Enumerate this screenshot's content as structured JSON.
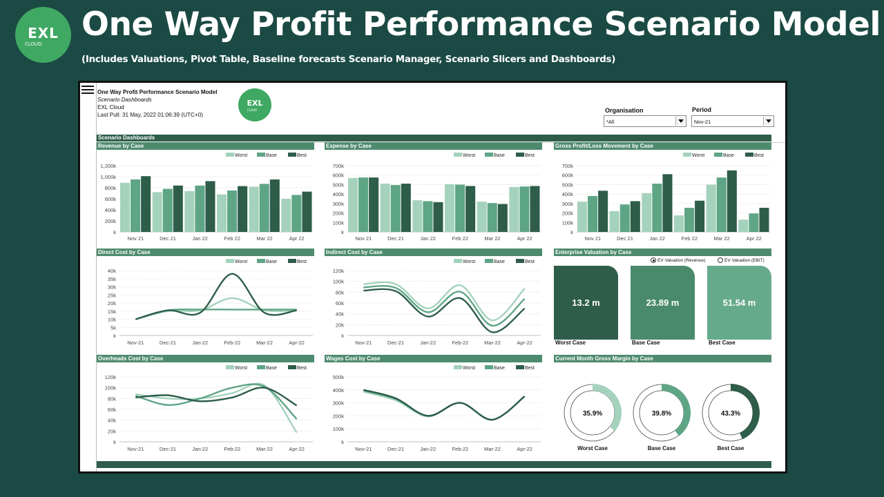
{
  "header": {
    "logo_text": "EXL",
    "logo_sub": "cloud",
    "title": "One Way Profit Performance Scenario Model",
    "subtitle": "(Includes Valuations, Pivot Table, Baseline forecasts Scenario Manager, Scenario Slicers and Dashboards)"
  },
  "dashboard": {
    "title": "One Way Profit Performance Scenario Model",
    "subtitle": "Scenario Dashboards",
    "company": "EXL Cloud",
    "last_pull": "Last Pull: 31 May, 2022 01:06:39 (UTC+0)",
    "logo_text": "EXL",
    "logo_sub": "cloud",
    "section_title": "Scenario Dashboards"
  },
  "filters": {
    "organisation_label": "Organisation",
    "organisation_value": "*All",
    "period_label": "Period",
    "period_value": "Nov-21"
  },
  "colors": {
    "worst": "#a5d2bd",
    "base": "#5ea586",
    "best": "#2e5d4a",
    "band": "#2e5d4a",
    "title_bar": "#4e8b6e"
  },
  "chart_data": [
    {
      "type": "bar",
      "title": "Revenue by Case",
      "categories": [
        "Nov 21",
        "Dec 21",
        "Jan 22",
        "Feb 22",
        "Mar 22",
        "Apr 22"
      ],
      "yticks": [
        "k",
        "200k",
        "400k",
        "600k",
        "800k",
        "1,000k",
        "1,200k"
      ],
      "ylim": [
        0,
        1200
      ],
      "grid": true,
      "legend": "top-right",
      "series": [
        {
          "name": "Worst",
          "values": [
            890,
            720,
            740,
            680,
            820,
            600
          ]
        },
        {
          "name": "Base",
          "values": [
            950,
            780,
            840,
            750,
            870,
            670
          ]
        },
        {
          "name": "Best",
          "values": [
            1010,
            840,
            920,
            830,
            950,
            730
          ]
        }
      ]
    },
    {
      "type": "bar",
      "title": "Expense by Case",
      "categories": [
        "Nov 21",
        "Dec 21",
        "Jan 22",
        "Feb 22",
        "Mar 22",
        "Apr 22"
      ],
      "yticks": [
        "k",
        "100k",
        "200k",
        "300k",
        "400k",
        "500k",
        "600k",
        "700k"
      ],
      "ylim": [
        0,
        700
      ],
      "grid": true,
      "legend": "top-right",
      "series": [
        {
          "name": "Worst",
          "values": [
            570,
            510,
            335,
            505,
            320,
            475
          ]
        },
        {
          "name": "Base",
          "values": [
            575,
            495,
            325,
            500,
            305,
            480
          ]
        },
        {
          "name": "Best",
          "values": [
            575,
            510,
            315,
            485,
            295,
            485
          ]
        }
      ]
    },
    {
      "type": "bar",
      "title": "Gross Profit/Loss Movement by Case",
      "categories": [
        "Nov 21",
        "Dec 21",
        "Jan 22",
        "Feb 22",
        "Mar 22",
        "Apr 22"
      ],
      "yticks": [
        "k",
        "100k",
        "200k",
        "300k",
        "400k",
        "500k",
        "600k",
        "700k"
      ],
      "ylim": [
        0,
        700
      ],
      "grid": true,
      "legend": "top-right",
      "series": [
        {
          "name": "Worst",
          "values": [
            320,
            220,
            410,
            175,
            500,
            130
          ]
        },
        {
          "name": "Base",
          "values": [
            380,
            290,
            510,
            255,
            575,
            195
          ]
        },
        {
          "name": "Best",
          "values": [
            435,
            325,
            610,
            330,
            650,
            255
          ]
        }
      ]
    },
    {
      "type": "line",
      "title": "Direct Cost by Case",
      "categories": [
        "Nov-21",
        "Dec-21",
        "Jan-22",
        "Feb-22",
        "Mar-22",
        "Apr-22"
      ],
      "yticks": [
        "k",
        "5k",
        "10k",
        "15k",
        "20k",
        "25k",
        "30k",
        "35k",
        "40k"
      ],
      "ylim": [
        0,
        40
      ],
      "grid": true,
      "legend": "top-right",
      "series": [
        {
          "name": "Worst",
          "values": [
            10,
            15,
            15.5,
            23,
            15.5,
            15.5
          ]
        },
        {
          "name": "Base",
          "values": [
            10,
            15.5,
            16,
            16,
            16,
            16
          ]
        },
        {
          "name": "Best",
          "values": [
            10,
            15.5,
            14,
            38,
            14,
            15.5
          ]
        }
      ]
    },
    {
      "type": "line",
      "title": "Indirect Cost by Case",
      "categories": [
        "Nov-21",
        "Dec-21",
        "Jan-22",
        "Feb-22",
        "Mar-22",
        "Apr-22"
      ],
      "yticks": [
        "k",
        "20k",
        "40k",
        "60k",
        "80k",
        "100k",
        "120k"
      ],
      "ylim": [
        0,
        120
      ],
      "grid": true,
      "legend": "top-right",
      "series": [
        {
          "name": "Worst",
          "values": [
            95,
            95,
            50,
            93,
            28,
            87
          ]
        },
        {
          "name": "Base",
          "values": [
            89,
            88,
            43,
            81,
            18,
            68
          ]
        },
        {
          "name": "Best",
          "values": [
            83,
            82,
            35,
            69,
            6,
            50
          ]
        }
      ]
    },
    {
      "type": "line",
      "title": "Overheads Cost by Case",
      "categories": [
        "Nov-21",
        "Dec-21",
        "Jan-22",
        "Feb-22",
        "Mar-22",
        "Apr-22"
      ],
      "yticks": [
        "k",
        "20k",
        "40k",
        "60k",
        "80k",
        "100k",
        "120k"
      ],
      "ylim": [
        0,
        120
      ],
      "grid": true,
      "legend": "top-right",
      "series": [
        {
          "name": "Worst",
          "values": [
            88,
            80,
            80,
            90,
            104,
            17
          ]
        },
        {
          "name": "Base",
          "values": [
            85,
            68,
            80,
            100,
            102,
            42
          ]
        },
        {
          "name": "Best",
          "values": [
            82,
            86,
            75,
            82,
            100,
            67
          ]
        }
      ]
    },
    {
      "type": "line",
      "title": "Wages Cost by Case",
      "categories": [
        "Nov-21",
        "Dec-21",
        "Jan-22",
        "Feb-22",
        "Mar-22",
        "Apr-22"
      ],
      "yticks": [
        "k",
        "100k",
        "200k",
        "300k",
        "400k",
        "500k"
      ],
      "ylim": [
        0,
        500
      ],
      "grid": true,
      "legend": "top-right",
      "series": [
        {
          "name": "Worst",
          "values": [
            385,
            320,
            195,
            300,
            170,
            350
          ]
        },
        {
          "name": "Base",
          "values": [
            395,
            330,
            200,
            300,
            170,
            350
          ]
        },
        {
          "name": "Best",
          "values": [
            400,
            335,
            200,
            300,
            170,
            350
          ]
        }
      ]
    },
    {
      "type": "pie",
      "title": "Current Month Gross Margin by Case",
      "items": [
        {
          "label": "Worst Case",
          "value": 35.9,
          "text": "35.9%"
        },
        {
          "label": "Base Case",
          "value": 39.8,
          "text": "39.8%"
        },
        {
          "label": "Best Case",
          "value": 43.3,
          "text": "43.3%"
        }
      ]
    }
  ],
  "valuation": {
    "title": "Enterprise Valuation by Case",
    "options": [
      {
        "label": "EV Valuation (Revenue)",
        "selected": true
      },
      {
        "label": "EV Valuation (EBIT)",
        "selected": false
      }
    ],
    "tiles": [
      {
        "label": "Worst Case",
        "value": "13.2 m",
        "color": "#2e5d4a"
      },
      {
        "label": "Base Case",
        "value": "23.89 m",
        "color": "#4a8a6c"
      },
      {
        "label": "Best Case",
        "value": "51.54 m",
        "color": "#66aa8c"
      }
    ]
  }
}
